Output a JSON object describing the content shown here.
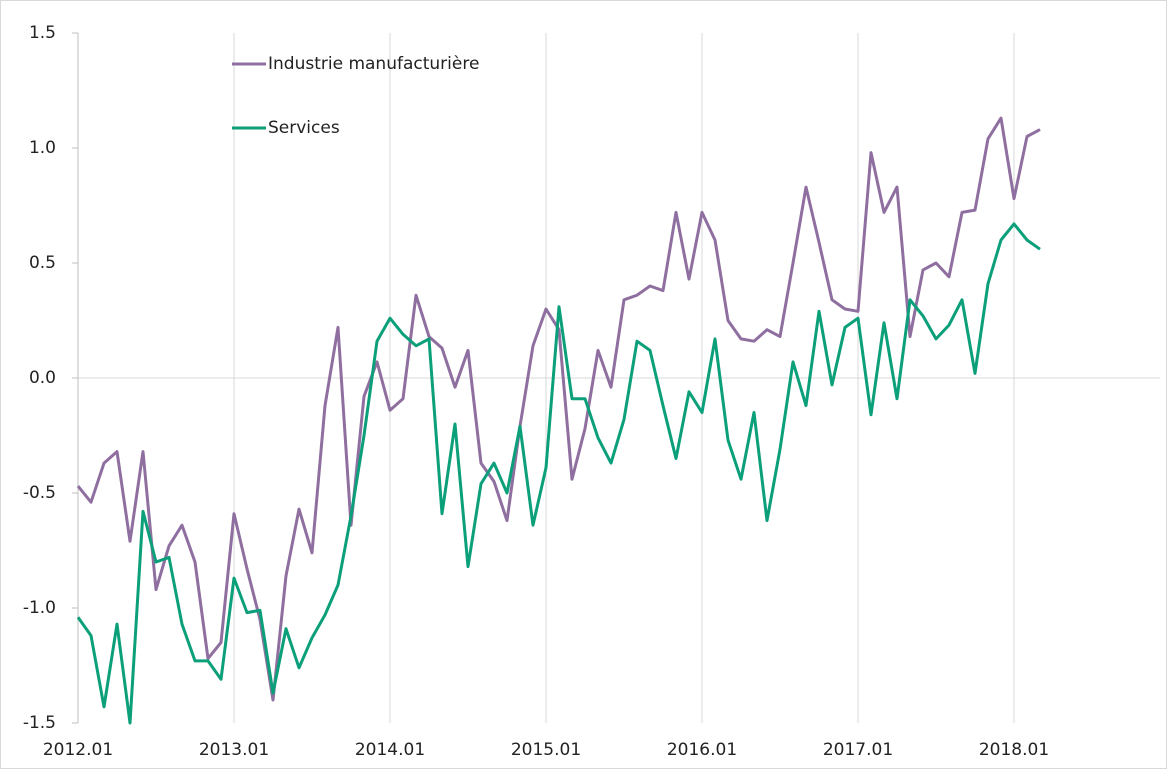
{
  "chart_data": {
    "type": "line",
    "categories": [
      "2012.01",
      null,
      null,
      null,
      null,
      null,
      null,
      null,
      null,
      null,
      null,
      null,
      "2013.01",
      null,
      null,
      null,
      null,
      null,
      null,
      null,
      null,
      null,
      null,
      null,
      "2014.01",
      null,
      null,
      null,
      null,
      null,
      null,
      null,
      null,
      null,
      null,
      null,
      "2015.01",
      null,
      null,
      null,
      null,
      null,
      null,
      null,
      null,
      null,
      null,
      null,
      "2016.01",
      null,
      null,
      null,
      null,
      null,
      null,
      null,
      null,
      null,
      null,
      null,
      "2017.01",
      null,
      null,
      null,
      null,
      null,
      null,
      null,
      null,
      null,
      null,
      null,
      "2018.01",
      null,
      null,
      null,
      null,
      null,
      null,
      null,
      null,
      null,
      null,
      null
    ],
    "series": [
      {
        "name": "Industrie manufacturière",
        "color": "#8f6f9f",
        "values": [
          -0.47,
          -0.54,
          -0.37,
          -0.32,
          -0.71,
          -0.32,
          -0.92,
          -0.73,
          -0.64,
          -0.8,
          -1.22,
          -1.15,
          -0.59,
          -0.83,
          -1.05,
          -1.4,
          -0.86,
          -0.57,
          -0.76,
          -0.12,
          0.22,
          -0.64,
          -0.08,
          0.07,
          -0.14,
          -0.09,
          0.36,
          0.18,
          0.13,
          -0.04,
          0.12,
          -0.37,
          -0.45,
          -0.62,
          -0.21,
          0.14,
          0.3,
          0.21,
          -0.44,
          -0.22,
          0.12,
          -0.04,
          0.34,
          0.36,
          0.4,
          0.38,
          0.72,
          0.43,
          0.72,
          0.6,
          0.25,
          0.17,
          0.16,
          0.21,
          0.18,
          0.5,
          0.83,
          0.59,
          0.34,
          0.3,
          0.29,
          0.98,
          0.72,
          0.83,
          0.18,
          0.47,
          0.5,
          0.44,
          0.72,
          0.73,
          1.04,
          1.13,
          0.78,
          1.05,
          1.08,
          null,
          null,
          null,
          null,
          null,
          null,
          null,
          null,
          null
        ]
      },
      {
        "name": "Services",
        "color": "#0b9f7a",
        "values": [
          -1.04,
          -1.12,
          -1.43,
          -1.07,
          -1.5,
          -0.58,
          -0.8,
          -0.78,
          -1.07,
          -1.23,
          -1.23,
          -1.31,
          -0.87,
          -1.02,
          -1.01,
          -1.37,
          -1.09,
          -1.26,
          -1.13,
          -1.03,
          -0.9,
          -0.6,
          -0.25,
          0.16,
          0.26,
          0.19,
          0.14,
          0.17,
          -0.59,
          -0.2,
          -0.82,
          -0.46,
          -0.37,
          -0.5,
          -0.21,
          -0.64,
          -0.39,
          0.31,
          -0.09,
          -0.09,
          -0.26,
          -0.37,
          -0.18,
          0.16,
          0.12,
          -0.12,
          -0.35,
          -0.06,
          -0.15,
          0.17,
          -0.27,
          -0.44,
          -0.15,
          -0.62,
          -0.31,
          0.07,
          -0.12,
          0.29,
          -0.03,
          0.22,
          0.26,
          -0.16,
          0.24,
          -0.09,
          0.34,
          0.27,
          0.17,
          0.23,
          0.34,
          0.02,
          0.41,
          0.6,
          0.67,
          0.6,
          0.56,
          null,
          null,
          null,
          null,
          null,
          null,
          null,
          null,
          null
        ]
      }
    ],
    "ylim": [
      -1.5,
      1.5
    ],
    "yticks": [
      -1.5,
      {
        "value": -1,
        "label": "-1.0"
      },
      -0.5,
      {
        "value": 0,
        "label": "0.0"
      },
      0.5,
      {
        "value": 1,
        "label": "1.0"
      },
      1.5
    ],
    "grid": true
  }
}
